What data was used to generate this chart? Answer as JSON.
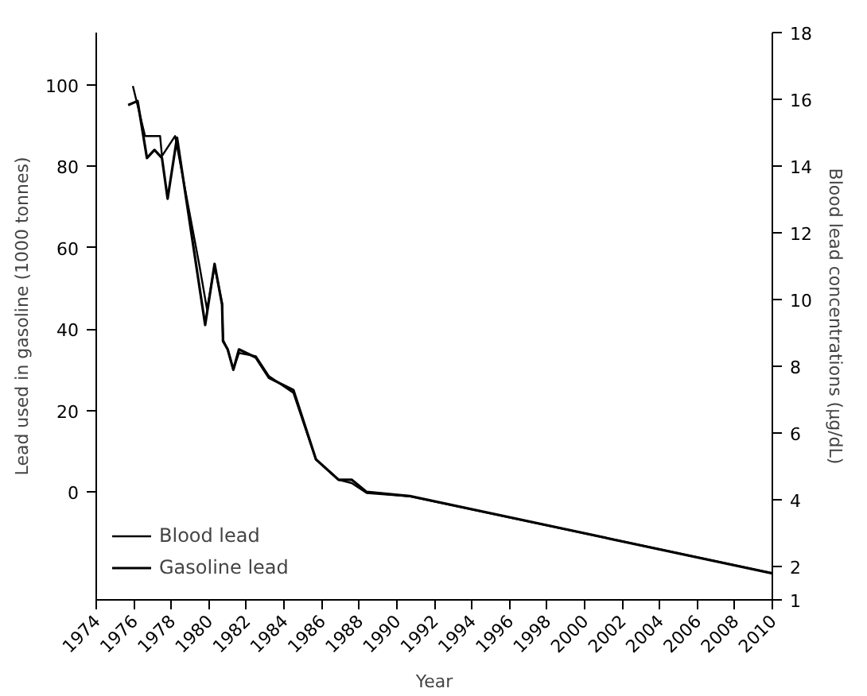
{
  "chart_data": {
    "type": "line",
    "xlabel": "Year",
    "ylabel": "Lead used in gasoline (1000 tonnes)",
    "y2label": "Blood lead concentrations (µg/dL)",
    "xlim": [
      1974,
      2010
    ],
    "xticks": [
      1974,
      1976,
      1978,
      1980,
      1982,
      1984,
      1986,
      1988,
      1990,
      1992,
      1994,
      1996,
      1998,
      2000,
      2002,
      2004,
      2006,
      2008,
      2010
    ],
    "ylim": [
      -26.5,
      112.8
    ],
    "yticks": [
      0,
      20,
      40,
      60,
      80,
      100
    ],
    "y2lim": [
      1,
      18
    ],
    "y2ticks": [
      1,
      2,
      4,
      6,
      8,
      10,
      12,
      14,
      16,
      18
    ],
    "grid": false,
    "legend": "bottom left",
    "marker": "none",
    "series": [
      {
        "name": "Blood lead",
        "color": "#000000",
        "axis": "y2",
        "line_style": "solid",
        "x": [
          1975.95,
          1976.6,
          1977.4,
          1977.5,
          1978.2,
          1979.5,
          1979.9,
          1980.3,
          1980.7,
          1980.75,
          1981.0,
          1981.3,
          1981.6,
          1982.5,
          1983.2,
          1984.5,
          1985.7,
          1986.9,
          1987.6,
          1988.4,
          1990.7,
          2010
        ],
        "values": [
          16.4,
          14.9,
          14.9,
          14.3,
          14.9,
          11.0,
          9.7,
          11.0,
          9.9,
          8.8,
          8.5,
          7.9,
          8.4,
          8.3,
          7.7,
          7.2,
          5.2,
          4.6,
          4.5,
          4.2,
          4.1,
          1.8
        ]
      },
      {
        "name": "Gasoline lead",
        "color": "#000000",
        "line_style": "solid",
        "x": [
          1975.7,
          1976.2,
          1976.7,
          1977.1,
          1977.5,
          1977.8,
          1978.3,
          1979.8,
          1980.3,
          1980.7,
          1980.75,
          1981.0,
          1981.3,
          1981.6,
          1982.5,
          1983.2,
          1984.5,
          1985.7,
          1986.9,
          1987.6,
          1988.4,
          1990.7,
          2010
        ],
        "values": [
          95,
          96,
          82,
          84,
          82,
          72,
          87,
          41,
          56,
          46,
          37,
          35,
          30,
          35,
          33,
          28,
          25,
          8,
          3,
          3,
          0,
          -1,
          -20
        ]
      }
    ]
  }
}
